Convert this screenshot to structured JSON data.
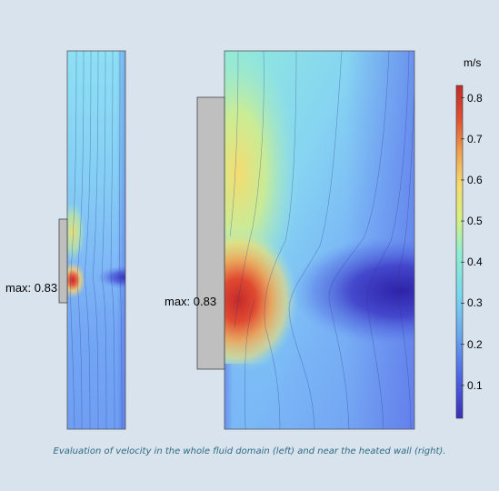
{
  "left_panel": {
    "max_label": "max: 0.83"
  },
  "right_panel": {
    "max_label": "max: 0.83"
  },
  "colorbar": {
    "unit": "m/s",
    "ticks": [
      "0.8",
      "0.7",
      "0.6",
      "0.5",
      "0.4",
      "0.3",
      "0.2",
      "0.1"
    ],
    "tick_values": [
      0.8,
      0.7,
      0.6,
      0.5,
      0.4,
      0.3,
      0.2,
      0.1
    ],
    "range": [
      0.02,
      0.83
    ],
    "colormap": [
      "#3b2fb8",
      "#4d63e6",
      "#6aa7f0",
      "#78d8f0",
      "#8ff0d0",
      "#d8f080",
      "#f5dc70",
      "#f0a050",
      "#e05030",
      "#c42a2a"
    ]
  },
  "caption": "Evaluation of velocity in the whole fluid domain (left) and near the heated wall (right).",
  "colors": {
    "background": "#d8e3ee",
    "wall": "#bfbfbf",
    "caption": "#2e6b80"
  }
}
